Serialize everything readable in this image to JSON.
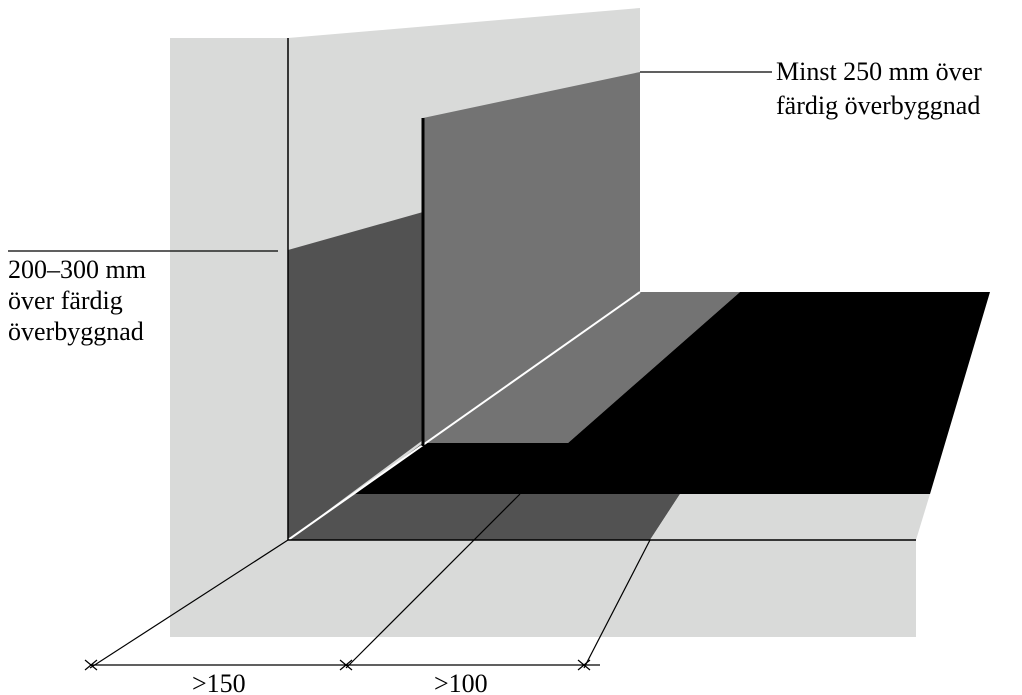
{
  "annotations": {
    "top_right": [
      "Minst 250 mm över",
      "färdig överbyggnad"
    ],
    "left": [
      "200–300 mm",
      "över färdig",
      "överbyggnad"
    ]
  },
  "dimensions": {
    "first": ">150",
    "second": ">100"
  },
  "colors": {
    "background": "#ffffff",
    "light_gray": "#d9dad9",
    "mid_gray": "#737373",
    "dark_gray": "#525252",
    "black": "#000000",
    "edge_highlight": "#ffffff"
  }
}
